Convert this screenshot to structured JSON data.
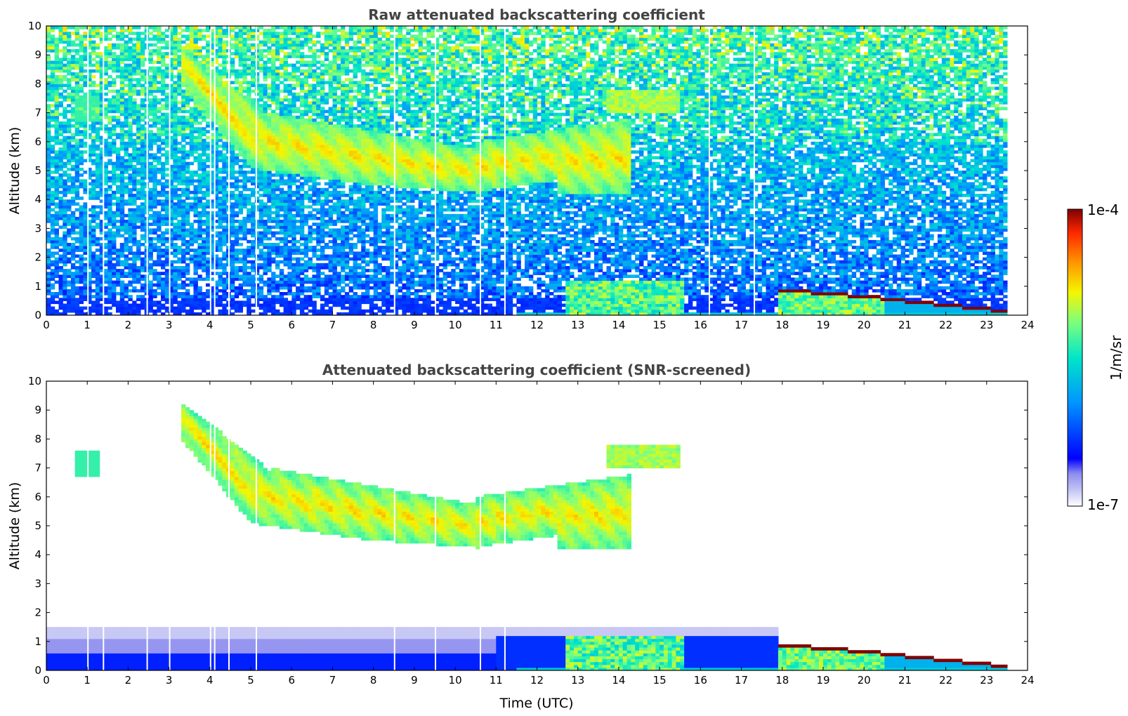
{
  "chart_data": [
    {
      "type": "heatmap",
      "title": "Raw attenuated backscattering coefficient",
      "xlabel": "",
      "ylabel": "Altitude (km)",
      "xlim": [
        0,
        24
      ],
      "ylim": [
        0,
        10
      ],
      "x_ticks": [
        "0",
        "1",
        "2",
        "3",
        "4",
        "5",
        "6",
        "7",
        "8",
        "9",
        "10",
        "11",
        "12",
        "13",
        "14",
        "15",
        "16",
        "17",
        "18",
        "19",
        "20",
        "21",
        "22",
        "23",
        "24"
      ],
      "y_ticks": [
        "0",
        "1",
        "2",
        "3",
        "4",
        "5",
        "6",
        "7",
        "8",
        "9",
        "10"
      ],
      "data_end_time": 23.5,
      "grid": false,
      "features": [
        {
          "name": "cirrus band",
          "time_start": 3.3,
          "time_end": 14.3,
          "alt_top": 9.3,
          "alt_base": 4.2
        },
        {
          "name": "high cirrus patch",
          "time_start": 13.7,
          "time_end": 15.5,
          "alt_top": 7.8,
          "alt_base": 7.0
        },
        {
          "name": "low cloud layer",
          "time_start": 12.7,
          "time_end": 15.6,
          "alt_top": 1.25,
          "alt_base": 0.0
        },
        {
          "name": "cloud base layer",
          "time_start": 17.9,
          "time_end": 23.5,
          "alt_top": 0.95,
          "alt_base": 0.2
        }
      ]
    },
    {
      "type": "heatmap",
      "title": "Attenuated backscattering coefficient (SNR-screened)",
      "xlabel": "Time (UTC)",
      "ylabel": "Altitude (km)",
      "xlim": [
        0,
        24
      ],
      "ylim": [
        0,
        10
      ],
      "x_ticks": [
        "0",
        "1",
        "2",
        "3",
        "4",
        "5",
        "6",
        "7",
        "8",
        "9",
        "10",
        "11",
        "12",
        "13",
        "14",
        "15",
        "16",
        "17",
        "18",
        "19",
        "20",
        "21",
        "22",
        "23",
        "24"
      ],
      "y_ticks": [
        "0",
        "1",
        "2",
        "3",
        "4",
        "5",
        "6",
        "7",
        "8",
        "9",
        "10"
      ],
      "data_end_time": 23.5,
      "grid": false
    }
  ],
  "colorbar": {
    "label": "1/m/sr",
    "min_label": "1e-7",
    "max_label": "1e-4",
    "scale": "log",
    "colormap": "jet",
    "colors": [
      "#ffffff",
      "#c8c8f5",
      "#8c8cf0",
      "#0000ff",
      "#0096ff",
      "#00e6c8",
      "#7dff7d",
      "#f5f500",
      "#ff9600",
      "#ff2800",
      "#800000"
    ]
  }
}
